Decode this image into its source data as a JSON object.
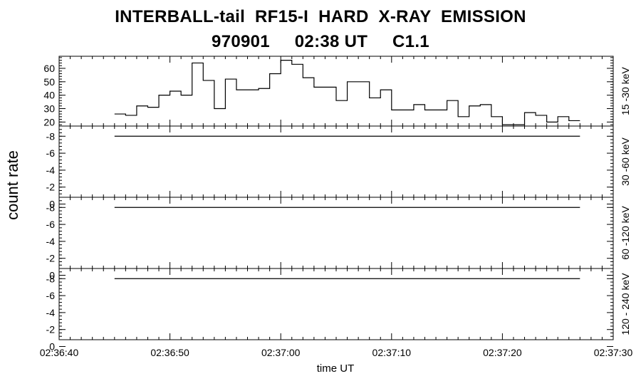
{
  "title_line1": "INTERBALL-tail  RF15-I  HARD  X-RAY  EMISSION",
  "title_line2": "970901     02:38 UT     C1.1",
  "chart_data": {
    "type": "line",
    "step": true,
    "ylabel": "count rate",
    "xlabel": "time UT",
    "x_ticks": [
      "02:36:40",
      "02:36:50",
      "02:37:00",
      "02:37:10",
      "02:37:20",
      "02:37:30"
    ],
    "x_range_seconds": [
      0,
      50
    ],
    "panels": [
      {
        "label": "15 -30 keV",
        "ylim": [
          17,
          69
        ],
        "y_ticks": [
          "20",
          "30",
          "40",
          "50",
          "60"
        ],
        "y_tick_values": [
          20,
          30,
          40,
          50,
          60
        ],
        "series": [
          {
            "x": [
              5,
              6,
              7,
              8,
              9,
              10,
              11,
              12,
              13,
              14,
              15,
              16,
              17,
              18,
              19,
              20,
              21,
              22,
              23,
              24,
              25,
              26,
              27,
              28,
              29,
              30,
              31,
              32,
              33,
              34,
              35,
              36,
              37,
              38,
              39,
              40,
              41,
              42,
              43,
              44,
              45,
              46
            ],
            "values": [
              26,
              25,
              32,
              31,
              40,
              43,
              40,
              64,
              51,
              30,
              52,
              44,
              44,
              45,
              56,
              66,
              63,
              53,
              46,
              46,
              36,
              50,
              50,
              38,
              44,
              29,
              29,
              33,
              29,
              29,
              36,
              24,
              32,
              33,
              24,
              18,
              18,
              27,
              25,
              20,
              24,
              21
            ]
          }
        ]
      },
      {
        "label": "30 -60 keV",
        "ylim": [
          -0.8,
          -9.2
        ],
        "y_ticks": [
          "-8",
          "-6",
          "-4",
          "-2",
          "0"
        ],
        "y_tick_values": [
          -8,
          -6,
          -4,
          -2,
          0
        ],
        "series": [
          {
            "x": [
              5,
              47
            ],
            "values": [
              -8,
              -8
            ]
          }
        ]
      },
      {
        "label": "60 -120 keV",
        "ylim": [
          -0.8,
          -9.2
        ],
        "y_ticks": [
          "-8",
          "-6",
          "-4",
          "-2",
          "0"
        ],
        "y_tick_values": [
          -8,
          -6,
          -4,
          -2,
          0
        ],
        "series": [
          {
            "x": [
              5,
              47
            ],
            "values": [
              -8,
              -8
            ]
          }
        ]
      },
      {
        "label": "120 - 240 keV",
        "ylim": [
          -0.8,
          -9.2
        ],
        "y_ticks": [
          "-8",
          "-6",
          "-4",
          "-2",
          "0"
        ],
        "y_tick_values": [
          -8,
          -6,
          -4,
          -2,
          0
        ],
        "series": [
          {
            "x": [
              5,
              47
            ],
            "values": [
              -8,
              -8
            ]
          }
        ]
      }
    ]
  }
}
